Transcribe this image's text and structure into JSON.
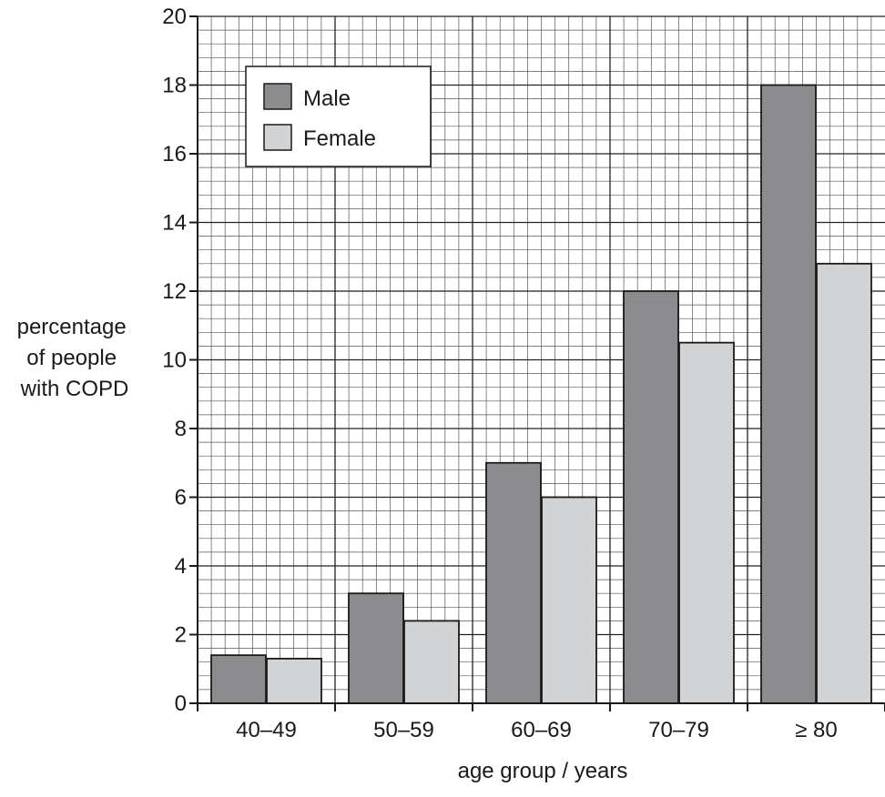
{
  "chart_data": {
    "type": "bar",
    "title": "",
    "xlabel": "age group / years",
    "ylabel_lines": [
      "percentage",
      "of people",
      "with COPD"
    ],
    "ylim": [
      0,
      20
    ],
    "y_ticks": [
      0,
      2,
      4,
      6,
      8,
      10,
      12,
      14,
      16,
      18,
      20
    ],
    "categories": [
      "40–49",
      "50–59",
      "60–69",
      "70–79",
      "≥ 80"
    ],
    "series": [
      {
        "name": "Male",
        "color": "#8c8c8e",
        "values": [
          1.4,
          3.2,
          7.0,
          12.0,
          18.0
        ]
      },
      {
        "name": "Female",
        "color": "#d2d3d5",
        "values": [
          1.3,
          2.4,
          6.0,
          10.5,
          12.8
        ]
      }
    ],
    "grid": true,
    "legend_position": "top-left"
  }
}
